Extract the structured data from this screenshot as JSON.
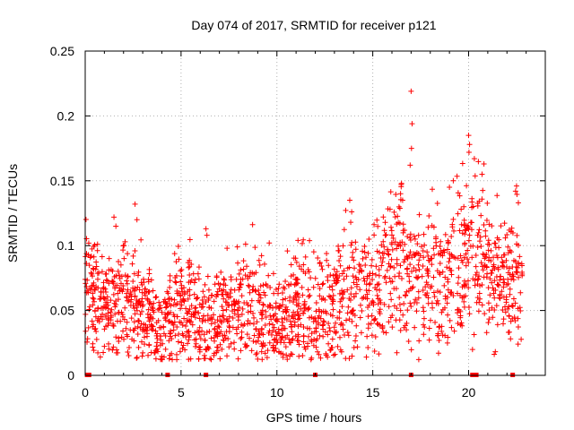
{
  "chart_data": {
    "type": "scatter",
    "title": "Day 074 of 2017, SRMTID for receiver p121",
    "xlabel": "GPS time / hours",
    "ylabel": "SRMTID / TECUs",
    "xlim": [
      0,
      24
    ],
    "ylim": [
      0,
      0.25
    ],
    "x_ticks": [
      "0",
      "5",
      "10",
      "15",
      "20"
    ],
    "x_tick_values": [
      0,
      5,
      10,
      15,
      20
    ],
    "y_ticks": [
      "0",
      "0.05",
      "0.1",
      "0.15",
      "0.2",
      "0.25"
    ],
    "y_tick_values": [
      0,
      0.05,
      0.1,
      0.15,
      0.2,
      0.25
    ],
    "grid": true,
    "marker": "+",
    "series_color": "#ff0000",
    "trend": [
      [
        0.0,
        0.075
      ],
      [
        0.5,
        0.058
      ],
      [
        1.0,
        0.048
      ],
      [
        1.5,
        0.052
      ],
      [
        2.0,
        0.062
      ],
      [
        2.5,
        0.055
      ],
      [
        3.0,
        0.048
      ],
      [
        3.5,
        0.042
      ],
      [
        4.0,
        0.03
      ],
      [
        4.5,
        0.045
      ],
      [
        5.0,
        0.058
      ],
      [
        5.5,
        0.052
      ],
      [
        6.0,
        0.045
      ],
      [
        6.5,
        0.042
      ],
      [
        7.0,
        0.048
      ],
      [
        7.5,
        0.052
      ],
      [
        8.0,
        0.055
      ],
      [
        8.5,
        0.058
      ],
      [
        9.0,
        0.052
      ],
      [
        9.5,
        0.045
      ],
      [
        10.0,
        0.038
      ],
      [
        10.5,
        0.045
      ],
      [
        11.0,
        0.055
      ],
      [
        11.5,
        0.052
      ],
      [
        12.0,
        0.045
      ],
      [
        12.5,
        0.048
      ],
      [
        13.0,
        0.055
      ],
      [
        13.5,
        0.062
      ],
      [
        14.0,
        0.065
      ],
      [
        14.5,
        0.062
      ],
      [
        15.0,
        0.065
      ],
      [
        15.5,
        0.072
      ],
      [
        16.0,
        0.078
      ],
      [
        16.5,
        0.085
      ],
      [
        17.0,
        0.08
      ],
      [
        17.5,
        0.075
      ],
      [
        18.0,
        0.07
      ],
      [
        18.5,
        0.072
      ],
      [
        19.0,
        0.078
      ],
      [
        19.5,
        0.085
      ],
      [
        20.0,
        0.095
      ],
      [
        20.5,
        0.09
      ],
      [
        21.0,
        0.085
      ],
      [
        21.5,
        0.08
      ],
      [
        22.0,
        0.072
      ],
      [
        22.5,
        0.078
      ],
      [
        22.8,
        0.08
      ]
    ],
    "outliers": [
      [
        17.0,
        0.219
      ],
      [
        17.05,
        0.194
      ],
      [
        17.02,
        0.175
      ],
      [
        16.95,
        0.162
      ],
      [
        20.0,
        0.185
      ],
      [
        20.05,
        0.178
      ],
      [
        20.02,
        0.172
      ],
      [
        20.3,
        0.167
      ],
      [
        20.8,
        0.163
      ],
      [
        20.7,
        0.155
      ],
      [
        16.5,
        0.148
      ],
      [
        16.45,
        0.14
      ],
      [
        19.2,
        0.15
      ],
      [
        19.0,
        0.145
      ],
      [
        22.5,
        0.146
      ],
      [
        22.45,
        0.142
      ],
      [
        13.8,
        0.135
      ],
      [
        13.9,
        0.126
      ],
      [
        13.85,
        0.118
      ],
      [
        2.6,
        0.132
      ],
      [
        2.7,
        0.12
      ],
      [
        1.5,
        0.122
      ],
      [
        1.6,
        0.115
      ],
      [
        6.3,
        0.113
      ],
      [
        6.35,
        0.108
      ],
      [
        9.6,
        0.102
      ],
      [
        11.1,
        0.104
      ],
      [
        7.4,
        0.098
      ],
      [
        14.8,
        0.105
      ],
      [
        15.9,
        0.128
      ]
    ],
    "baseline_markers_x": [
      0.1,
      0.2,
      4.3,
      6.3,
      12.0,
      17.0,
      20.2,
      20.4,
      22.3
    ]
  }
}
